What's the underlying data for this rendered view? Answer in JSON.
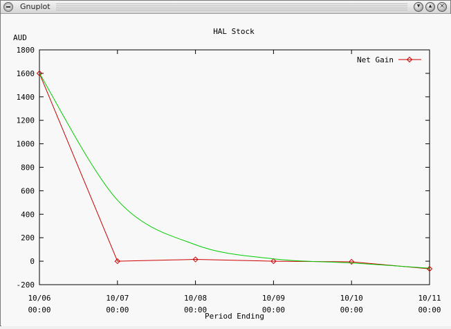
{
  "window": {
    "title": "Gnuplot",
    "icons": [
      "menu-icon",
      "minimize-icon",
      "maximize-icon",
      "close-icon"
    ]
  },
  "chart_data": {
    "type": "line",
    "title": "HAL Stock",
    "xlabel": "Period Ending",
    "ylabel": "AUD",
    "ylim": [
      -200,
      1800
    ],
    "yticks": [
      -200,
      0,
      200,
      400,
      600,
      800,
      1000,
      1200,
      1400,
      1600,
      1800
    ],
    "x": [
      "10/06 00:00",
      "10/07 00:00",
      "10/08 00:00",
      "10/09 00:00",
      "10/10 00:00",
      "10/11 00:00"
    ],
    "xtick_lines": [
      [
        "10/06",
        "00:00"
      ],
      [
        "10/07",
        "00:00"
      ],
      [
        "10/08",
        "00:00"
      ],
      [
        "10/09",
        "00:00"
      ],
      [
        "10/10",
        "00:00"
      ],
      [
        "10/11",
        "00:00"
      ]
    ],
    "grid": false,
    "legend_position": "top-right",
    "series": [
      {
        "name": "Net Gain",
        "color": "#cc0000",
        "marker": "diamond",
        "values": [
          1600,
          0,
          15,
          0,
          -5,
          -65
        ]
      },
      {
        "color": "#00cc00",
        "marker": "none",
        "smooth": true,
        "values": [
          1600,
          520,
          140,
          20,
          -15,
          -60
        ]
      }
    ]
  }
}
